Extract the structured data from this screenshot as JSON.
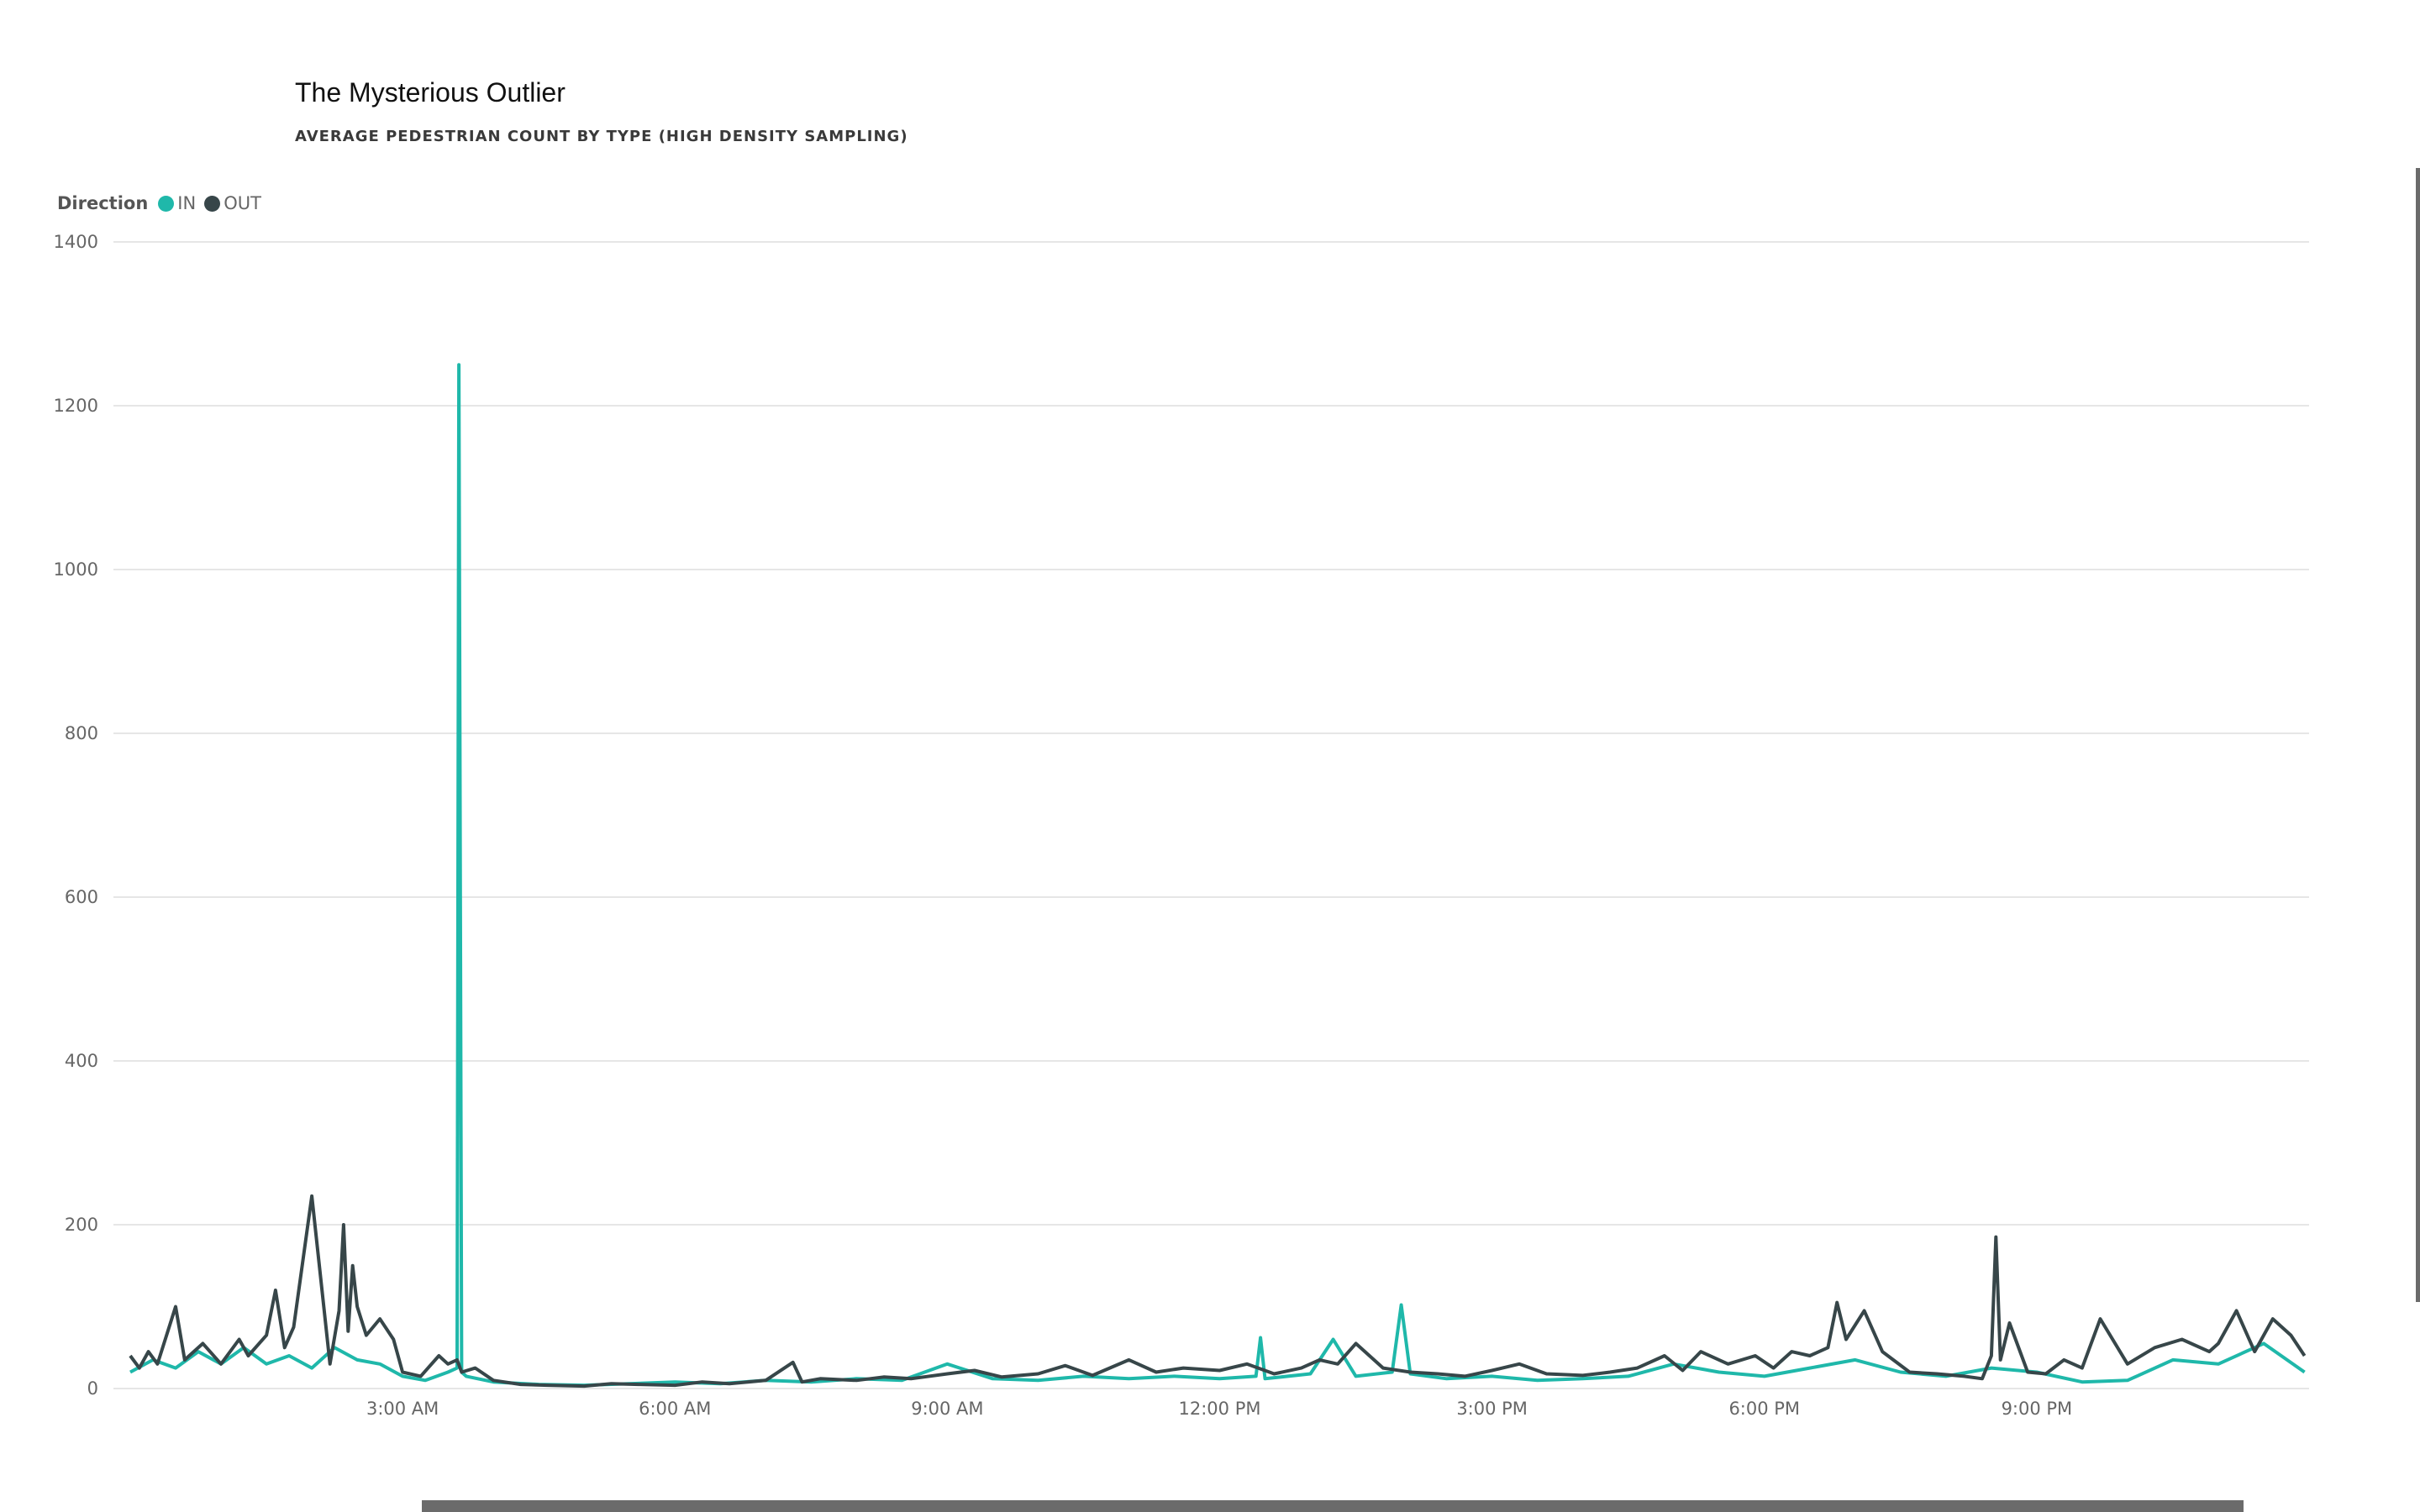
{
  "header": {
    "title": "The Mysterious Outlier",
    "subtitle": "AVERAGE PEDESTRIAN COUNT BY TYPE (HIGH DENSITY SAMPLING)"
  },
  "legend": {
    "title": "Direction",
    "items": [
      {
        "label": "IN",
        "color": "#1FB8AA"
      },
      {
        "label": "OUT",
        "color": "#374649"
      }
    ]
  },
  "chart_data": {
    "type": "line",
    "title": "The Mysterious Outlier",
    "subtitle": "AVERAGE PEDESTRIAN COUNT BY TYPE (HIGH DENSITY SAMPLING)",
    "xlabel": "",
    "ylabel": "",
    "x_unit": "hours since midnight",
    "xlim": [
      0,
      24
    ],
    "ylim": [
      0,
      1400
    ],
    "y_ticks": [
      0,
      200,
      400,
      600,
      800,
      1000,
      1200,
      1400
    ],
    "x_ticks": [
      {
        "value": 3,
        "label": "3:00 AM"
      },
      {
        "value": 6,
        "label": "6:00 AM"
      },
      {
        "value": 9,
        "label": "9:00 AM"
      },
      {
        "value": 12,
        "label": "12:00 PM"
      },
      {
        "value": 15,
        "label": "3:00 PM"
      },
      {
        "value": 18,
        "label": "6:00 PM"
      },
      {
        "value": 21,
        "label": "9:00 PM"
      }
    ],
    "grid": true,
    "legend_position": "top-left",
    "series": [
      {
        "name": "IN",
        "color": "#1FB8AA",
        "x": [
          0.0,
          0.25,
          0.5,
          0.75,
          1.0,
          1.25,
          1.5,
          1.75,
          2.0,
          2.25,
          2.5,
          2.75,
          3.0,
          3.25,
          3.5,
          3.6,
          3.62,
          3.65,
          3.7,
          4.0,
          4.5,
          5.0,
          5.5,
          6.0,
          6.5,
          7.0,
          7.5,
          8.0,
          8.5,
          9.0,
          9.5,
          10.0,
          10.5,
          11.0,
          11.5,
          12.0,
          12.4,
          12.45,
          12.5,
          13.0,
          13.25,
          13.5,
          13.9,
          14.0,
          14.1,
          14.5,
          15.0,
          15.5,
          16.0,
          16.5,
          17.0,
          17.5,
          18.0,
          18.5,
          19.0,
          19.5,
          20.0,
          20.5,
          21.0,
          21.5,
          22.0,
          22.5,
          23.0,
          23.5,
          23.95
        ],
        "y": [
          20,
          35,
          25,
          45,
          30,
          50,
          30,
          40,
          25,
          50,
          35,
          30,
          15,
          10,
          20,
          25,
          1250,
          20,
          15,
          8,
          5,
          4,
          6,
          8,
          6,
          10,
          8,
          12,
          10,
          30,
          12,
          10,
          15,
          12,
          15,
          12,
          15,
          62,
          12,
          18,
          60,
          15,
          20,
          102,
          18,
          12,
          15,
          10,
          12,
          15,
          30,
          20,
          15,
          25,
          35,
          20,
          15,
          25,
          20,
          8,
          10,
          35,
          30,
          55,
          20
        ]
      },
      {
        "name": "OUT",
        "color": "#374649",
        "x": [
          0.0,
          0.1,
          0.2,
          0.3,
          0.5,
          0.6,
          0.8,
          1.0,
          1.2,
          1.3,
          1.5,
          1.6,
          1.7,
          1.8,
          2.0,
          2.2,
          2.3,
          2.35,
          2.4,
          2.45,
          2.5,
          2.6,
          2.75,
          2.9,
          3.0,
          3.2,
          3.4,
          3.5,
          3.6,
          3.65,
          3.8,
          4.0,
          4.3,
          4.6,
          5.0,
          5.3,
          5.6,
          6.0,
          6.3,
          6.6,
          7.0,
          7.3,
          7.4,
          7.6,
          8.0,
          8.3,
          8.6,
          9.0,
          9.3,
          9.6,
          10.0,
          10.3,
          10.6,
          11.0,
          11.3,
          11.6,
          12.0,
          12.3,
          12.6,
          12.9,
          13.1,
          13.3,
          13.5,
          13.8,
          14.1,
          14.4,
          14.7,
          15.0,
          15.3,
          15.6,
          16.0,
          16.3,
          16.6,
          16.9,
          17.1,
          17.3,
          17.6,
          17.9,
          18.1,
          18.3,
          18.5,
          18.7,
          18.8,
          18.9,
          19.1,
          19.3,
          19.6,
          19.9,
          20.2,
          20.4,
          20.5,
          20.55,
          20.6,
          20.7,
          20.9,
          21.1,
          21.3,
          21.5,
          21.7,
          22.0,
          22.3,
          22.6,
          22.9,
          23.0,
          23.2,
          23.4,
          23.6,
          23.8,
          23.95
        ],
        "y": [
          40,
          25,
          45,
          30,
          100,
          35,
          55,
          30,
          60,
          40,
          65,
          120,
          50,
          75,
          235,
          30,
          95,
          200,
          70,
          150,
          100,
          65,
          85,
          60,
          20,
          15,
          40,
          30,
          35,
          20,
          25,
          10,
          5,
          4,
          3,
          6,
          5,
          4,
          8,
          6,
          10,
          32,
          8,
          12,
          10,
          14,
          12,
          18,
          22,
          14,
          18,
          28,
          16,
          35,
          20,
          25,
          22,
          30,
          18,
          25,
          35,
          30,
          55,
          25,
          20,
          18,
          15,
          22,
          30,
          18,
          16,
          20,
          25,
          40,
          22,
          45,
          30,
          40,
          25,
          45,
          40,
          50,
          105,
          60,
          95,
          45,
          20,
          18,
          15,
          12,
          40,
          185,
          35,
          80,
          20,
          18,
          35,
          25,
          85,
          30,
          50,
          60,
          45,
          55,
          95,
          45,
          85,
          65,
          40
        ]
      }
    ]
  }
}
